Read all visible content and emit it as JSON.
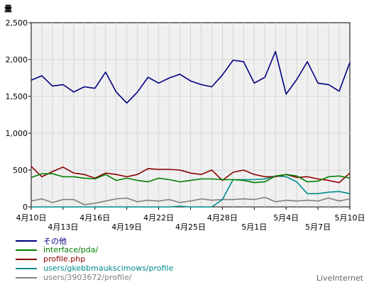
{
  "chart_data": {
    "type": "line",
    "title": "",
    "ylabel": "量",
    "xlabel": "",
    "ylim": [
      0,
      2500
    ],
    "yticks": [
      0,
      500,
      1000,
      1500,
      2000,
      2500
    ],
    "ytick_labels": [
      "0",
      "500",
      "1,000",
      "1,500",
      "2,000",
      "2,500"
    ],
    "grid": true,
    "legend_position": "bottom-left",
    "x": [
      "4/10",
      "4/11",
      "4/12",
      "4/13",
      "4/14",
      "4/15",
      "4/16",
      "4/17",
      "4/18",
      "4/19",
      "4/20",
      "4/21",
      "4/22",
      "4/23",
      "4/24",
      "4/25",
      "4/26",
      "4/27",
      "4/28",
      "4/29",
      "4/30",
      "5/1",
      "5/2",
      "5/3",
      "5/4",
      "5/5",
      "5/6",
      "5/7",
      "5/8",
      "5/9",
      "5/10"
    ],
    "xtick_labels": [
      {
        "index": 0,
        "label": "4月10日",
        "row": 1
      },
      {
        "index": 3,
        "label": "4月13日",
        "row": 2
      },
      {
        "index": 6,
        "label": "4月16日",
        "row": 1
      },
      {
        "index": 9,
        "label": "4月19日",
        "row": 2
      },
      {
        "index": 12,
        "label": "4月22日",
        "row": 1
      },
      {
        "index": 15,
        "label": "4月25日",
        "row": 2
      },
      {
        "index": 18,
        "label": "4月28日",
        "row": 1
      },
      {
        "index": 21,
        "label": "5月1日",
        "row": 2
      },
      {
        "index": 24,
        "label": "5月4日",
        "row": 1
      },
      {
        "index": 27,
        "label": "5月7日",
        "row": 2
      },
      {
        "index": 30,
        "label": "5月10日",
        "row": 1
      }
    ],
    "series": [
      {
        "name": "その他",
        "color": "#000080",
        "values": [
          1720,
          1780,
          1640,
          1660,
          1560,
          1630,
          1610,
          1830,
          1560,
          1410,
          1560,
          1760,
          1680,
          1750,
          1800,
          1710,
          1660,
          1630,
          1790,
          1990,
          1970,
          1680,
          1760,
          2110,
          1530,
          1730,
          1970,
          1680,
          1660,
          1570,
          1960
        ]
      },
      {
        "name": "interface/pda/",
        "color": "#008000",
        "values": [
          400,
          450,
          450,
          410,
          410,
          390,
          380,
          440,
          360,
          390,
          360,
          340,
          390,
          370,
          340,
          360,
          380,
          380,
          370,
          370,
          360,
          330,
          340,
          420,
          440,
          420,
          340,
          350,
          410,
          420,
          390
        ]
      },
      {
        "name": "profile.php",
        "color": "#8b0000",
        "values": [
          550,
          410,
          480,
          540,
          460,
          440,
          390,
          460,
          440,
          410,
          440,
          520,
          510,
          510,
          500,
          460,
          440,
          500,
          360,
          470,
          500,
          440,
          410,
          410,
          440,
          400,
          410,
          380,
          360,
          330,
          460
        ]
      },
      {
        "name": "users/gkebbmaukscimows/profile",
        "color": "#008b8b",
        "values": [
          0,
          0,
          0,
          0,
          0,
          0,
          0,
          0,
          0,
          0,
          0,
          0,
          0,
          0,
          10,
          0,
          0,
          0,
          100,
          370,
          370,
          370,
          380,
          420,
          410,
          340,
          180,
          180,
          200,
          210,
          180
        ]
      },
      {
        "name": "users/3903672/profile/",
        "color": "#808080",
        "values": [
          80,
          110,
          60,
          100,
          100,
          30,
          50,
          80,
          110,
          120,
          70,
          90,
          80,
          100,
          60,
          80,
          110,
          90,
          100,
          100,
          110,
          100,
          130,
          70,
          90,
          80,
          90,
          80,
          120,
          80,
          110
        ]
      }
    ]
  },
  "watermark": "LiveInternet"
}
